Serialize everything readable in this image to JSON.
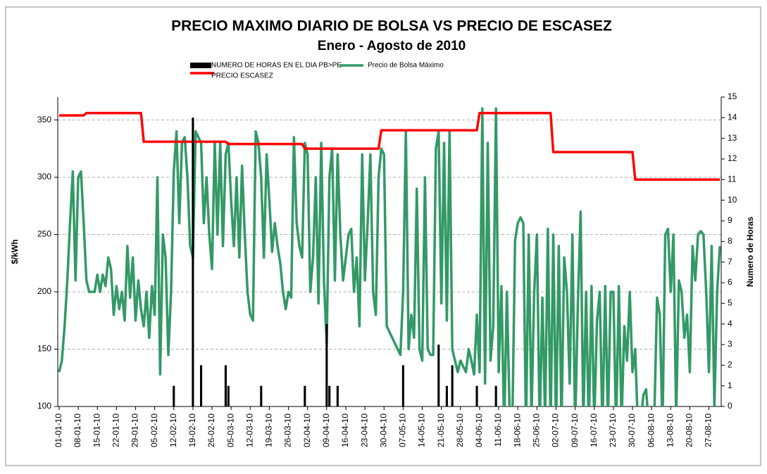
{
  "chart_data": {
    "type": "line",
    "title": "PRECIO MAXIMO DIARIO DE BOLSA VS PRECIO DE ESCASEZ",
    "subtitle": "Enero - Agosto de 2010",
    "y_label": "$/kWh",
    "y2_label": "Numero de Horas",
    "grid": true,
    "legend": "top",
    "ylim": [
      100,
      370
    ],
    "yticks": [
      100,
      150,
      200,
      250,
      300,
      350
    ],
    "y2lim": [
      0,
      15
    ],
    "y2ticks": [
      0,
      1,
      2,
      3,
      4,
      5,
      6,
      7,
      8,
      9,
      10,
      11,
      12,
      13,
      14,
      15
    ],
    "categories": [
      "01-01-10",
      null,
      null,
      null,
      null,
      null,
      null,
      "08-01-10",
      null,
      null,
      null,
      null,
      null,
      null,
      "15-01-10",
      null,
      null,
      null,
      null,
      null,
      null,
      "22-01-10",
      null,
      null,
      null,
      null,
      null,
      null,
      "29-01-10",
      null,
      null,
      null,
      null,
      null,
      null,
      "05-02-10",
      null,
      null,
      null,
      null,
      null,
      null,
      "12-02-10",
      null,
      null,
      null,
      null,
      null,
      null,
      "19-02-10",
      null,
      null,
      null,
      null,
      null,
      null,
      "26-02-10",
      null,
      null,
      null,
      null,
      null,
      null,
      "05-03-10",
      null,
      null,
      null,
      null,
      null,
      null,
      "12-03-10",
      null,
      null,
      null,
      null,
      null,
      null,
      "19-03-10",
      null,
      null,
      null,
      null,
      null,
      null,
      "26-03-10",
      null,
      null,
      null,
      null,
      null,
      null,
      "02-04-10",
      null,
      null,
      null,
      null,
      null,
      null,
      "09-04-10",
      null,
      null,
      null,
      null,
      null,
      null,
      "16-04-10",
      null,
      null,
      null,
      null,
      null,
      null,
      "23-04-10",
      null,
      null,
      null,
      null,
      null,
      null,
      "30-04-10",
      null,
      null,
      null,
      null,
      null,
      null,
      "07-05-10",
      null,
      null,
      null,
      null,
      null,
      null,
      "14-05-10",
      null,
      null,
      null,
      null,
      null,
      null,
      "21-05-10",
      null,
      null,
      null,
      null,
      null,
      null,
      "28-05-10",
      null,
      null,
      null,
      null,
      null,
      null,
      "04-06-10",
      null,
      null,
      null,
      null,
      null,
      null,
      "11-06-10",
      null,
      null,
      null,
      null,
      null,
      null,
      "18-06-10",
      null,
      null,
      null,
      null,
      null,
      null,
      "25-06-10",
      null,
      null,
      null,
      null,
      null,
      null,
      "02-07-10",
      null,
      null,
      null,
      null,
      null,
      null,
      "09-07-10",
      null,
      null,
      null,
      null,
      null,
      null,
      "16-07-10",
      null,
      null,
      null,
      null,
      null,
      null,
      "23-07-10",
      null,
      null,
      null,
      null,
      null,
      null,
      "30-07-10",
      null,
      null,
      null,
      null,
      null,
      null,
      "06-08-10",
      null,
      null,
      null,
      null,
      null,
      null,
      "13-08-10",
      null,
      null,
      null,
      null,
      null,
      null,
      "20-08-10",
      null,
      null,
      null,
      null,
      null,
      null,
      "27-08-10",
      null,
      null,
      null,
      null
    ],
    "series": [
      {
        "name": "NUMERO DE HORAS EN EL DIA PB>PE",
        "type": "bar",
        "axis": "y2",
        "color": "#000000",
        "values": [
          0,
          0,
          0,
          0,
          0,
          0,
          0,
          0,
          0,
          0,
          0,
          0,
          0,
          0,
          0,
          0,
          0,
          0,
          0,
          0,
          0,
          0,
          0,
          0,
          0,
          0,
          0,
          0,
          0,
          0,
          0,
          0,
          0,
          0,
          0,
          0,
          0,
          0,
          0,
          0,
          0,
          0,
          1,
          0,
          0,
          0,
          0,
          0,
          0,
          14,
          0,
          0,
          2,
          0,
          0,
          0,
          0,
          0,
          0,
          0,
          0,
          2,
          1,
          0,
          0,
          0,
          0,
          0,
          0,
          0,
          0,
          0,
          0,
          0,
          1,
          0,
          0,
          0,
          0,
          0,
          0,
          0,
          0,
          0,
          0,
          0,
          0,
          0,
          0,
          0,
          1,
          0,
          0,
          0,
          0,
          0,
          0,
          0,
          4,
          1,
          0,
          0,
          1,
          0,
          0,
          0,
          0,
          0,
          0,
          0,
          0,
          0,
          0,
          0,
          0,
          0,
          0,
          0,
          0,
          0,
          0,
          0,
          0,
          0,
          0,
          0,
          2,
          0,
          0,
          0,
          0,
          0,
          0,
          0,
          0,
          0,
          0,
          0,
          0,
          3,
          0,
          0,
          1,
          0,
          2,
          0,
          0,
          0,
          0,
          0,
          0,
          0,
          0,
          1,
          0,
          0,
          0,
          0,
          0,
          0,
          1,
          0,
          0,
          0,
          0,
          0,
          0,
          0,
          0,
          0,
          0,
          0,
          0,
          0,
          0,
          0,
          0,
          0,
          0,
          0,
          0,
          0,
          0,
          0,
          0,
          0,
          0,
          0,
          0,
          0,
          0,
          0,
          0,
          0,
          0,
          0,
          0,
          0,
          0,
          0,
          0,
          0,
          0,
          0,
          0,
          0,
          0,
          0,
          0,
          0,
          0,
          0,
          0,
          0,
          0,
          0,
          0,
          0,
          0,
          0,
          0,
          0,
          0,
          0,
          0,
          0,
          0,
          0,
          0,
          0,
          0,
          0,
          0,
          0,
          0,
          0,
          0,
          0,
          0,
          0,
          0,
          0,
          0
        ]
      },
      {
        "name": "PRECIO ESCASEZ",
        "color": "#ff0000",
        "values": [
          354,
          354,
          354,
          354,
          354,
          354,
          354,
          354,
          354,
          354,
          356,
          356,
          356,
          356,
          356,
          356,
          356,
          356,
          356,
          356,
          356,
          356,
          356,
          356,
          356,
          356,
          356,
          356,
          356,
          356,
          356,
          331,
          331,
          331,
          331,
          331,
          331,
          331,
          331,
          331,
          331,
          331,
          331,
          331,
          331,
          331,
          331,
          331,
          331,
          331,
          331,
          331,
          331,
          331,
          331,
          331,
          331,
          331,
          331,
          331,
          331,
          331,
          329,
          329,
          329,
          329,
          329,
          329,
          329,
          329,
          329,
          329,
          329,
          329,
          329,
          329,
          329,
          329,
          329,
          329,
          329,
          329,
          329,
          329,
          329,
          329,
          329,
          329,
          329,
          329,
          325,
          325,
          325,
          325,
          325,
          325,
          325,
          325,
          325,
          325,
          325,
          325,
          325,
          325,
          325,
          325,
          325,
          325,
          325,
          325,
          325,
          325,
          325,
          325,
          325,
          325,
          325,
          325,
          341,
          341,
          341,
          341,
          341,
          341,
          341,
          341,
          341,
          341,
          341,
          341,
          341,
          341,
          341,
          341,
          341,
          341,
          341,
          341,
          341,
          341,
          341,
          341,
          341,
          341,
          341,
          341,
          341,
          341,
          341,
          341,
          341,
          341,
          341,
          341,
          356,
          356,
          356,
          356,
          356,
          356,
          356,
          356,
          356,
          356,
          356,
          356,
          356,
          356,
          356,
          356,
          356,
          356,
          356,
          356,
          356,
          356,
          356,
          356,
          356,
          356,
          356,
          322,
          322,
          322,
          322,
          322,
          322,
          322,
          322,
          322,
          322,
          322,
          322,
          322,
          322,
          322,
          322,
          322,
          322,
          322,
          322,
          322,
          322,
          322,
          322,
          322,
          322,
          322,
          322,
          322,
          322,
          298,
          298,
          298,
          298,
          298,
          298,
          298,
          298,
          298,
          298,
          298,
          298,
          298,
          298,
          298,
          298,
          298,
          298,
          298,
          298,
          298,
          298,
          298,
          298,
          298,
          298,
          298,
          298,
          298,
          298,
          298,
          298
        ]
      },
      {
        "name": "Precio de Bolsa Máximo",
        "color": "#339966",
        "values": [
          130,
          140,
          170,
          210,
          260,
          305,
          210,
          300,
          305,
          260,
          210,
          200,
          200,
          200,
          215,
          200,
          215,
          205,
          230,
          220,
          180,
          205,
          185,
          200,
          175,
          240,
          195,
          230,
          175,
          210,
          185,
          170,
          200,
          160,
          205,
          180,
          300,
          128,
          250,
          230,
          145,
          200,
          305,
          340,
          260,
          330,
          335,
          300,
          240,
          230,
          340,
          335,
          330,
          260,
          300,
          250,
          220,
          330,
          250,
          330,
          240,
          320,
          330,
          280,
          240,
          300,
          230,
          310,
          250,
          200,
          180,
          175,
          340,
          330,
          300,
          230,
          320,
          280,
          235,
          260,
          240,
          225,
          200,
          185,
          200,
          195,
          335,
          260,
          240,
          230,
          330,
          320,
          200,
          230,
          300,
          190,
          330,
          210,
          155,
          300,
          325,
          210,
          320,
          250,
          210,
          230,
          250,
          255,
          200,
          230,
          170,
          320,
          210,
          260,
          320,
          200,
          180,
          300,
          325,
          320,
          170,
          165,
          160,
          155,
          150,
          145,
          200,
          340,
          150,
          180,
          160,
          290,
          150,
          140,
          300,
          150,
          145,
          145,
          325,
          340,
          190,
          330,
          175,
          340,
          150,
          140,
          130,
          140,
          135,
          130,
          150,
          140,
          128,
          180,
          130,
          360,
          120,
          330,
          140,
          170,
          360,
          130,
          205,
          80,
          200,
          95,
          85,
          245,
          260,
          265,
          260,
          80,
          250,
          90,
          200,
          250,
          80,
          195,
          90,
          255,
          80,
          250,
          80,
          240,
          85,
          230,
          200,
          120,
          250,
          80,
          190,
          270,
          85,
          200,
          80,
          205,
          85,
          175,
          200,
          80,
          205,
          85,
          200,
          200,
          80,
          205,
          85,
          170,
          140,
          200,
          130,
          150,
          80,
          85,
          110,
          115,
          80,
          85,
          90,
          195,
          180,
          80,
          250,
          255,
          200,
          250,
          90,
          210,
          200,
          160,
          180,
          130,
          240,
          210,
          250,
          253,
          250,
          200,
          130,
          240,
          100,
          200,
          240
        ]
      }
    ]
  }
}
